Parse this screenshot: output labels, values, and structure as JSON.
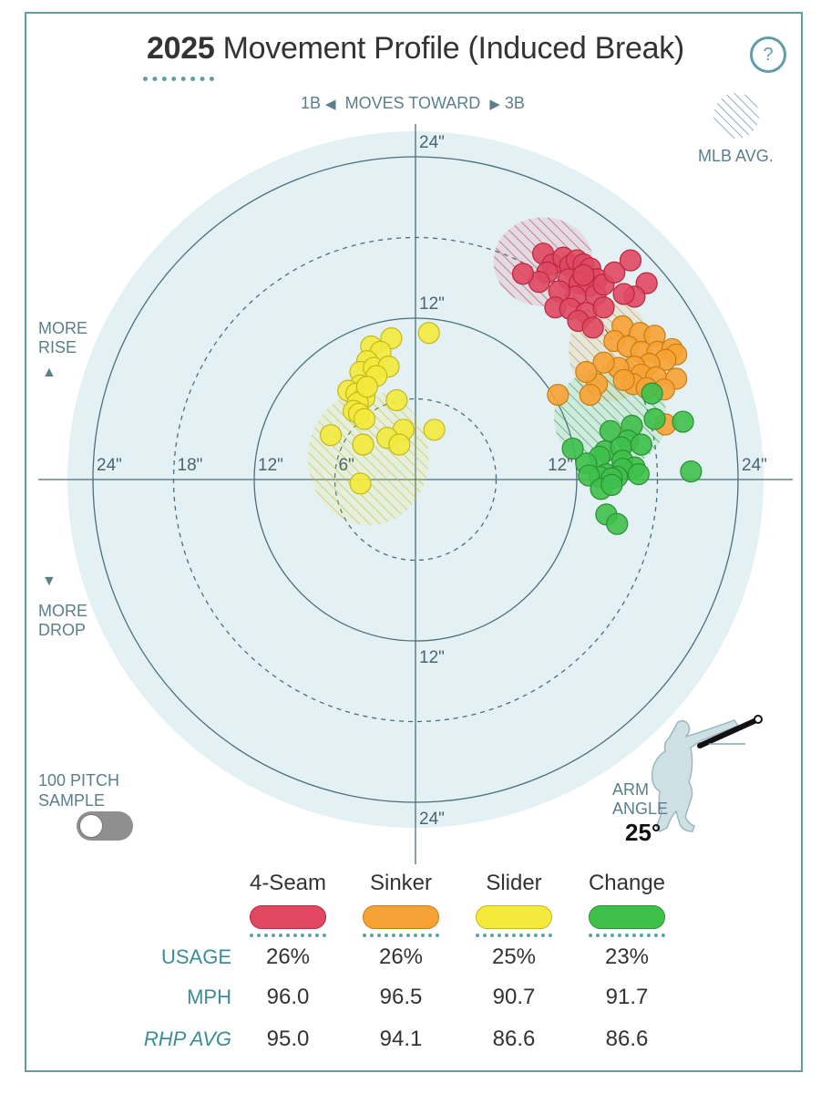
{
  "header": {
    "year": "2025",
    "title": "Movement Profile (Induced Break)",
    "help": "?"
  },
  "direction": {
    "left": "1B",
    "middle": "MOVES TOWARD",
    "right": "3B",
    "left_arrow": "◀",
    "right_arrow": "▶"
  },
  "side_labels": {
    "rise_line1": "MORE",
    "rise_line2": "RISE",
    "rise_arrow": "▲",
    "drop_arrow": "▼",
    "drop_line1": "MORE",
    "drop_line2": "DROP"
  },
  "mlb_avg_label": "MLB AVG.",
  "sample": {
    "line1": "100 PITCH",
    "line2": "SAMPLE",
    "toggle_on": false
  },
  "arm_angle": {
    "line1": "ARM",
    "line2": "ANGLE",
    "value": "25°"
  },
  "chart_data": {
    "type": "scatter",
    "title": "2025 Movement Profile (Induced Break)",
    "xlabel": "1B ◀ MOVES TOWARD ▶ 3B",
    "ylabel": "MORE RISE / MORE DROP",
    "xlim": [
      -26,
      26
    ],
    "ylim": [
      -26,
      26
    ],
    "rings": [
      {
        "radius": 6,
        "style": "dashed"
      },
      {
        "radius": 12,
        "style": "solid"
      },
      {
        "radius": 18,
        "style": "dashed"
      },
      {
        "radius": 24,
        "style": "solid"
      }
    ],
    "tick_labels": {
      "top_24": "24\"",
      "top_12": "12\"",
      "bottom_12": "12\"",
      "bottom_24": "24\"",
      "left_24": "24\"",
      "left_18": "18\"",
      "left_12": "12\"",
      "left_6": "6\"",
      "right_12": "12\"",
      "right_24": "24\""
    },
    "mlb_averages": [
      {
        "pitch": "4-Seam",
        "x": 9.5,
        "y": 16.2,
        "rx": 3.7,
        "ry": 3.3
      },
      {
        "pitch": "Sinker",
        "x": 14.5,
        "y": 9.6,
        "rx": 3.1,
        "ry": 3.8
      },
      {
        "pitch": "Slider",
        "x": -3.5,
        "y": 1.6,
        "rx": 4.5,
        "ry": 5.0
      },
      {
        "pitch": "Change",
        "x": 14.5,
        "y": 4.6,
        "rx": 4.2,
        "ry": 3.8
      }
    ],
    "series": [
      {
        "name": "4-Seam",
        "color": "#e04862",
        "stroke": "#b8263f",
        "points": [
          [
            9.5,
            16.8
          ],
          [
            10.2,
            16.0
          ],
          [
            11.0,
            16.5
          ],
          [
            9.8,
            15.4
          ],
          [
            11.5,
            15.9
          ],
          [
            12.0,
            16.3
          ],
          [
            12.5,
            16.0
          ],
          [
            13.0,
            15.7
          ],
          [
            11.4,
            14.9
          ],
          [
            12.2,
            14.6
          ],
          [
            13.5,
            14.9
          ],
          [
            12.9,
            14.4
          ],
          [
            13.4,
            13.7
          ],
          [
            11.9,
            13.6
          ],
          [
            10.7,
            14.0
          ],
          [
            10.4,
            12.8
          ],
          [
            11.5,
            12.7
          ],
          [
            12.7,
            12.4
          ],
          [
            12.1,
            11.8
          ],
          [
            13.2,
            11.3
          ],
          [
            9.2,
            14.7
          ],
          [
            8.0,
            15.3
          ],
          [
            14.0,
            14.5
          ],
          [
            14.8,
            15.4
          ],
          [
            16.0,
            16.3
          ],
          [
            17.2,
            14.6
          ],
          [
            16.3,
            13.6
          ],
          [
            15.5,
            13.8
          ],
          [
            14.0,
            12.8
          ],
          [
            12.5,
            15.2
          ]
        ]
      },
      {
        "name": "Sinker",
        "color": "#f7a234",
        "stroke": "#c77d10",
        "points": [
          [
            15.4,
            11.4
          ],
          [
            16.7,
            10.9
          ],
          [
            17.8,
            10.7
          ],
          [
            14.8,
            10.3
          ],
          [
            15.8,
            9.9
          ],
          [
            16.8,
            9.5
          ],
          [
            18.0,
            9.5
          ],
          [
            19.1,
            9.7
          ],
          [
            19.4,
            9.3
          ],
          [
            18.6,
            8.9
          ],
          [
            17.4,
            8.6
          ],
          [
            16.3,
            8.4
          ],
          [
            15.1,
            8.3
          ],
          [
            14.0,
            8.7
          ],
          [
            16.8,
            7.8
          ],
          [
            17.9,
            7.6
          ],
          [
            19.4,
            7.5
          ],
          [
            18.5,
            6.7
          ],
          [
            16.2,
            7.1
          ],
          [
            13.5,
            7.1
          ],
          [
            15.5,
            7.4
          ],
          [
            17.2,
            6.8
          ],
          [
            13.0,
            6.3
          ],
          [
            10.6,
            6.3
          ],
          [
            18.6,
            4.1
          ],
          [
            12.7,
            8.0
          ]
        ]
      },
      {
        "name": "Slider",
        "color": "#f3ea3c",
        "stroke": "#c4b81c",
        "points": [
          [
            -1.8,
            10.5
          ],
          [
            -3.3,
            9.9
          ],
          [
            -2.6,
            9.5
          ],
          [
            -3.6,
            8.8
          ],
          [
            -4.1,
            8.0
          ],
          [
            -3.1,
            8.3
          ],
          [
            -2.0,
            8.4
          ],
          [
            -2.9,
            7.7
          ],
          [
            -4.1,
            7.0
          ],
          [
            -5.0,
            6.6
          ],
          [
            -4.4,
            6.4
          ],
          [
            -3.8,
            6.1
          ],
          [
            -4.3,
            5.7
          ],
          [
            -4.6,
            5.1
          ],
          [
            -4.2,
            4.9
          ],
          [
            -3.8,
            4.5
          ],
          [
            -1.4,
            5.9
          ],
          [
            -0.9,
            3.7
          ],
          [
            1.0,
            10.9
          ],
          [
            1.4,
            3.7
          ],
          [
            -2.1,
            3.1
          ],
          [
            -1.2,
            2.6
          ],
          [
            -6.3,
            3.3
          ],
          [
            -3.9,
            2.6
          ],
          [
            -4.1,
            -0.3
          ],
          [
            -3.6,
            6.9
          ]
        ]
      },
      {
        "name": "Change",
        "color": "#3ec04a",
        "stroke": "#2a8f34",
        "points": [
          [
            17.6,
            6.4
          ],
          [
            19.9,
            4.3
          ],
          [
            17.8,
            4.5
          ],
          [
            16.1,
            4.0
          ],
          [
            14.5,
            3.6
          ],
          [
            15.8,
            2.9
          ],
          [
            14.1,
            2.1
          ],
          [
            15.3,
            2.4
          ],
          [
            16.8,
            2.6
          ],
          [
            13.7,
            1.7
          ],
          [
            15.4,
            1.4
          ],
          [
            16.3,
            0.9
          ],
          [
            12.7,
            1.2
          ],
          [
            11.7,
            2.3
          ],
          [
            15.4,
            0.8
          ],
          [
            14.2,
            0.4
          ],
          [
            13.7,
            0.2
          ],
          [
            12.9,
            0.3
          ],
          [
            15.0,
            0.2
          ],
          [
            14.6,
            0.1
          ],
          [
            16.6,
            0.4
          ],
          [
            20.5,
            0.6
          ],
          [
            13.8,
            -0.7
          ],
          [
            14.6,
            -0.4
          ],
          [
            14.2,
            -2.6
          ],
          [
            15.0,
            -3.3
          ]
        ]
      }
    ]
  },
  "legend": [
    {
      "name": "4-Seam",
      "fill": "#e04862",
      "border": "#b8263f"
    },
    {
      "name": "Sinker",
      "fill": "#f7a234",
      "border": "#c77d10"
    },
    {
      "name": "Slider",
      "fill": "#f3ea3c",
      "border": "#c4b81c"
    },
    {
      "name": "Change",
      "fill": "#3ec04a",
      "border": "#2a8f34"
    }
  ],
  "stats": {
    "usage_label": "USAGE",
    "mph_label": "MPH",
    "rhp_label": "RHP AVG",
    "usage": [
      "26%",
      "26%",
      "25%",
      "23%"
    ],
    "mph": [
      "96.0",
      "96.5",
      "90.7",
      "91.7"
    ],
    "rhp_avg": [
      "95.0",
      "94.1",
      "86.6",
      "86.6"
    ]
  }
}
